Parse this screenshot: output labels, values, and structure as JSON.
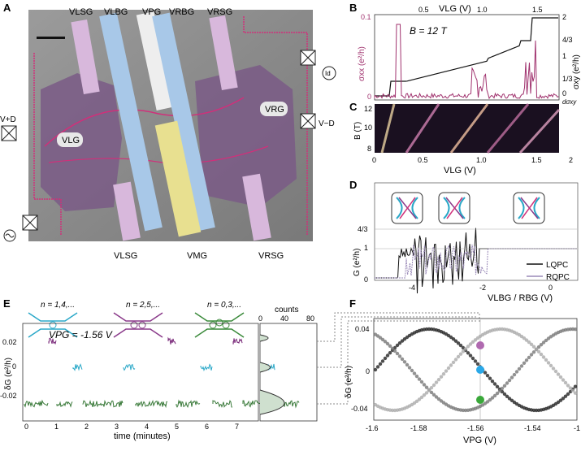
{
  "panels": {
    "A": {
      "label": "A",
      "gate_labels_top": [
        "VLSG",
        "VLBG",
        "VPG",
        "VRBG",
        "VRSG"
      ],
      "gate_labels_bottom": [
        "VLSG",
        "VMG",
        "VRSG"
      ],
      "terminals": {
        "vd_plus": "V+D",
        "vd_minus": "V−D",
        "vlg": "VLG",
        "vrg": "VRG",
        "id": "Id"
      },
      "colors": {
        "sem_bg": "#8a8a8a",
        "lsg": "#d8b8dc",
        "lbg": "#a8c8e8",
        "pg": "#eeeeee",
        "mg": "#e8e090",
        "region": "#7a5a86",
        "edge": "#d0307a"
      }
    },
    "B": {
      "label": "B",
      "annotation": "B = 12 T",
      "top_axis_label": "VLG (V)",
      "top_ticks": [
        "0.5",
        "1.0",
        "1.5"
      ],
      "left_axis_label": "σxx (e²/h)",
      "left_ticks": [
        "0.1",
        "0"
      ],
      "right_axis_label": "σxy (e²/h)",
      "right_ticks": [
        "2",
        "4/3",
        "1",
        "1/3",
        "0"
      ],
      "colors": {
        "sxx": "#a0326e",
        "sxy": "#111111"
      }
    },
    "C": {
      "label": "C",
      "y_axis_label": "B (T)",
      "y_ticks": [
        "12",
        "10",
        "8"
      ],
      "x_axis_label": "VLG (V)",
      "x_ticks": [
        "0",
        "0.5",
        "1.0",
        "1.5",
        "2"
      ],
      "corner": "dσxy"
    },
    "D": {
      "label": "D",
      "y_axis_label": "G (e²/h)",
      "y_ticks": [
        "4/3",
        "1",
        "0"
      ],
      "x_axis_label": "VLBG / RBG (V)",
      "x_ticks": [
        "-4",
        "-2",
        "0"
      ],
      "legend": [
        {
          "name": "LQPC",
          "color": "#111111"
        },
        {
          "name": "RQPC",
          "color": "#9a8ab8"
        }
      ]
    },
    "E": {
      "label": "E",
      "annotation": "VPG = -1.56 V",
      "fillings": [
        {
          "text": "n = 1,4,...",
          "color": "#2aa8c8"
        },
        {
          "text": "n = 2,5,...",
          "color": "#8a3a8a"
        },
        {
          "text": "n = 0,3,...",
          "color": "#3a8a3a"
        }
      ],
      "y_axis_label": "δG (e²/h)",
      "y_ticks": [
        "0.02",
        "0",
        "-0.02"
      ],
      "x_axis_label": "time (minutes)",
      "x_ticks": [
        "0",
        "1",
        "2",
        "3",
        "4",
        "5",
        "6",
        "7"
      ],
      "hist_title": "counts",
      "hist_ticks": [
        "0",
        "40",
        "80"
      ]
    },
    "F": {
      "label": "F",
      "y_axis_label": "δG (e²/h)",
      "y_ticks": [
        "0.04",
        "0",
        "-0.04"
      ],
      "x_axis_label": "VPG (V)",
      "x_ticks": [
        "-1.6",
        "-1.58",
        "-1.56",
        "-1.54",
        "-1"
      ]
    }
  }
}
